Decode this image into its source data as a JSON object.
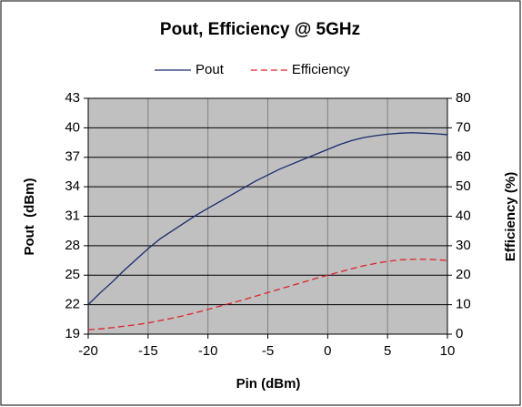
{
  "chart_data": {
    "type": "line",
    "title": "Pout, Efficiency @ 5GHz",
    "x_label": "Pin (dBm)",
    "y_label": "Pout  (dBm)",
    "y2_label": "Efficiency (%)",
    "x": [
      -20,
      -19,
      -18,
      -17,
      -16,
      -15,
      -14,
      -13,
      -12,
      -11,
      -10,
      -9,
      -8,
      -7,
      -6,
      -5,
      -4,
      -3,
      -2,
      -1,
      0,
      1,
      2,
      3,
      4,
      5,
      6,
      7,
      8,
      9,
      10
    ],
    "series": [
      {
        "name": "Pout",
        "color": "#1a2a6c",
        "dash": false,
        "values": [
          22,
          23.2,
          24.3,
          25.5,
          26.6,
          27.7,
          28.7,
          29.5,
          30.3,
          31.1,
          31.8,
          32.5,
          33.2,
          33.9,
          34.6,
          35.2,
          35.8,
          36.3,
          36.8,
          37.3,
          37.8,
          38.3,
          38.7,
          39,
          39.2,
          39.35,
          39.45,
          39.5,
          39.45,
          39.4,
          39.3
        ]
      },
      {
        "name": "Efficiency",
        "color": "#e0202a",
        "dash": true,
        "axis": "y2",
        "values": [
          1.5,
          1.8,
          2.2,
          2.7,
          3.2,
          3.8,
          4.6,
          5.4,
          6.3,
          7.3,
          8.4,
          9.5,
          10.6,
          11.7,
          12.9,
          14.1,
          15.3,
          16.5,
          17.7,
          18.9,
          20,
          21.1,
          22.2,
          23.2,
          24,
          24.7,
          25.2,
          25.4,
          25.4,
          25.3,
          25
        ]
      }
    ],
    "xlim": [
      -20,
      10
    ],
    "xticks": [
      -20,
      -15,
      -10,
      -5,
      0,
      5,
      10
    ],
    "ylim": [
      19,
      43
    ],
    "yticks": [
      19,
      22,
      25,
      28,
      31,
      34,
      37,
      40,
      43
    ],
    "y2lim": [
      0,
      80
    ],
    "y2ticks": [
      0,
      10,
      20,
      30,
      40,
      50,
      60,
      70,
      80
    ],
    "grid": true,
    "legend_position": "top"
  }
}
